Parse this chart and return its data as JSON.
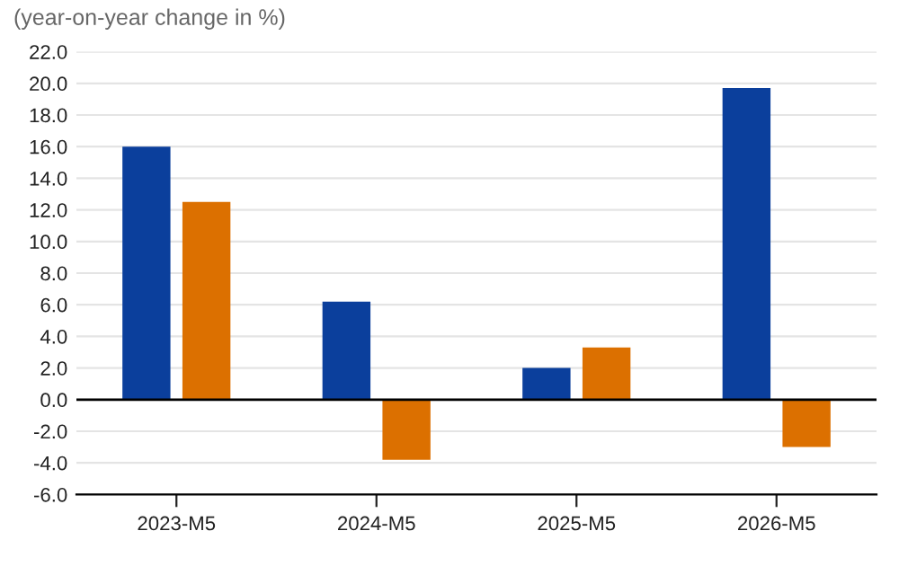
{
  "chart_data": {
    "type": "bar",
    "subtitle": "(year-on-year change in %)",
    "categories": [
      "2023-M5",
      "2024-M5",
      "2025-M5",
      "2026-M5"
    ],
    "series": [
      {
        "color": "#0b3f9c",
        "values": [
          16.0,
          6.2,
          2.0,
          19.7
        ]
      },
      {
        "color": "#dc7000",
        "values": [
          12.5,
          -3.8,
          3.3,
          -3.0
        ]
      }
    ],
    "ylim": [
      -6,
      22
    ],
    "yticks": [
      {
        "value": -6,
        "label": "-6.0"
      },
      {
        "value": -4,
        "label": "-4.0"
      },
      {
        "value": -2,
        "label": "-2.0"
      },
      {
        "value": 0,
        "label": "0.0"
      },
      {
        "value": 2,
        "label": "2.0"
      },
      {
        "value": 4,
        "label": "4.0"
      },
      {
        "value": 6,
        "label": "6.0"
      },
      {
        "value": 8,
        "label": "8.0"
      },
      {
        "value": 10,
        "label": "10.0"
      },
      {
        "value": 12,
        "label": "12.0"
      },
      {
        "value": 14,
        "label": "14.0"
      },
      {
        "value": 16,
        "label": "16.0"
      },
      {
        "value": 18,
        "label": "18.0"
      },
      {
        "value": 20,
        "label": "20.0"
      },
      {
        "value": 22,
        "label": "22.0"
      }
    ],
    "grid": "y"
  }
}
